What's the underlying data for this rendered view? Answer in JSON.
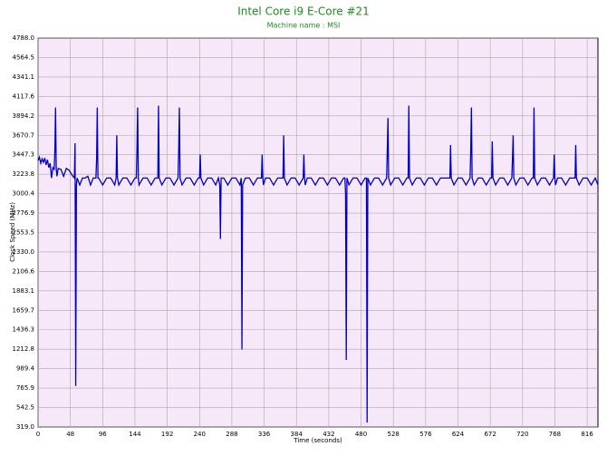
{
  "chart_data": {
    "type": "line",
    "title": "Intel Core i9 E-Core #21",
    "subtitle": "Machine name : MSI",
    "x_label": "Time (seconds)",
    "y_label": "Clock Speed (MHz)",
    "color": "#0000c0",
    "grid": true,
    "xlim": [
      0,
      832
    ],
    "xticks": [
      0,
      48,
      96,
      144,
      192,
      240,
      288,
      336,
      384,
      432,
      480,
      528,
      576,
      624,
      672,
      720,
      768,
      816
    ],
    "ylim": [
      319,
      4788
    ],
    "yticks": [
      {
        "value": 319,
        "label": "319.0"
      },
      542.5,
      765.9,
      989.4,
      1212.8,
      1436.3,
      1659.7,
      1883.1,
      2106.6,
      {
        "value": 2330,
        "label": "2330.0"
      },
      2553.5,
      2776.9,
      3000.4,
      3223.8,
      3447.3,
      3670.7,
      3894.2,
      4117.6,
      4341.1,
      4564.5,
      {
        "value": 4788,
        "label": "4788.0"
      }
    ],
    "x": [
      0,
      2,
      4,
      6,
      8,
      10,
      12,
      14,
      16,
      18,
      20,
      22,
      24,
      25,
      26,
      27,
      28,
      30,
      34,
      38,
      42,
      46,
      50,
      54,
      55,
      56,
      57,
      58,
      62,
      66,
      70,
      74,
      78,
      82,
      86,
      87,
      88,
      89,
      90,
      96,
      102,
      108,
      114,
      116,
      117,
      118,
      120,
      126,
      132,
      138,
      144,
      146,
      147,
      148,
      149,
      150,
      156,
      162,
      168,
      174,
      178,
      179,
      180,
      184,
      190,
      196,
      202,
      208,
      209,
      210,
      211,
      214,
      220,
      226,
      232,
      238,
      240,
      241,
      242,
      246,
      252,
      258,
      264,
      268,
      270,
      271,
      272,
      276,
      282,
      288,
      294,
      300,
      302,
      303,
      304,
      308,
      314,
      320,
      326,
      332,
      333,
      334,
      335,
      338,
      344,
      350,
      356,
      362,
      364,
      365,
      366,
      370,
      376,
      382,
      388,
      394,
      395,
      396,
      397,
      400,
      406,
      412,
      418,
      424,
      430,
      436,
      442,
      448,
      454,
      456,
      457,
      458,
      459,
      462,
      468,
      474,
      480,
      486,
      488,
      489,
      490,
      494,
      500,
      506,
      512,
      518,
      519,
      520,
      521,
      524,
      530,
      536,
      542,
      548,
      550,
      551,
      552,
      556,
      562,
      568,
      574,
      580,
      586,
      592,
      598,
      604,
      610,
      612,
      613,
      614,
      618,
      624,
      630,
      636,
      642,
      643,
      644,
      645,
      648,
      654,
      660,
      666,
      672,
      674,
      675,
      676,
      680,
      686,
      692,
      698,
      704,
      705,
      706,
      707,
      710,
      716,
      722,
      728,
      734,
      736,
      737,
      738,
      742,
      748,
      754,
      760,
      766,
      767,
      768,
      769,
      772,
      778,
      784,
      790,
      796,
      798,
      799,
      800,
      804,
      810,
      816,
      822,
      828,
      832
    ],
    "values": [
      3380,
      3420,
      3350,
      3400,
      3360,
      3410,
      3330,
      3390,
      3300,
      3350,
      3180,
      3300,
      3280,
      3500,
      3990,
      3300,
      3200,
      3290,
      3280,
      3200,
      3290,
      3270,
      3220,
      3180,
      3580,
      790,
      3100,
      3180,
      3100,
      3180,
      3180,
      3200,
      3100,
      3180,
      3180,
      3400,
      3990,
      3180,
      3180,
      3100,
      3180,
      3180,
      3100,
      3180,
      3670,
      3180,
      3100,
      3180,
      3180,
      3100,
      3180,
      3180,
      3500,
      3990,
      3180,
      3100,
      3180,
      3180,
      3100,
      3180,
      3180,
      4010,
      3180,
      3100,
      3180,
      3180,
      3100,
      3180,
      3500,
      3990,
      3180,
      3100,
      3180,
      3180,
      3100,
      3180,
      3180,
      3450,
      3180,
      3100,
      3180,
      3180,
      3100,
      3180,
      3100,
      2480,
      3180,
      3180,
      3100,
      3180,
      3180,
      3100,
      3180,
      1210,
      3100,
      3180,
      3180,
      3100,
      3180,
      3180,
      3450,
      3180,
      3100,
      3180,
      3180,
      3100,
      3180,
      3180,
      3180,
      3670,
      3180,
      3100,
      3180,
      3180,
      3100,
      3180,
      3450,
      3180,
      3100,
      3180,
      3180,
      3100,
      3180,
      3180,
      3100,
      3180,
      3180,
      3100,
      3180,
      3180,
      3000,
      1090,
      3180,
      3100,
      3180,
      3180,
      3100,
      3180,
      3180,
      370,
      3180,
      3100,
      3180,
      3180,
      3100,
      3180,
      3500,
      3870,
      3180,
      3100,
      3180,
      3180,
      3100,
      3180,
      3180,
      4010,
      3180,
      3100,
      3180,
      3180,
      3100,
      3180,
      3180,
      3100,
      3180,
      3180,
      3180,
      3180,
      3560,
      3180,
      3100,
      3180,
      3180,
      3100,
      3180,
      3500,
      3990,
      3180,
      3100,
      3180,
      3180,
      3100,
      3180,
      3180,
      3600,
      3180,
      3100,
      3180,
      3180,
      3100,
      3180,
      3400,
      3670,
      3180,
      3100,
      3180,
      3180,
      3100,
      3180,
      3180,
      3990,
      3180,
      3100,
      3180,
      3180,
      3100,
      3180,
      3450,
      3180,
      3100,
      3180,
      3180,
      3100,
      3180,
      3180,
      3180,
      3560,
      3180,
      3100,
      3180,
      3180,
      3100,
      3180,
      3100
    ]
  }
}
